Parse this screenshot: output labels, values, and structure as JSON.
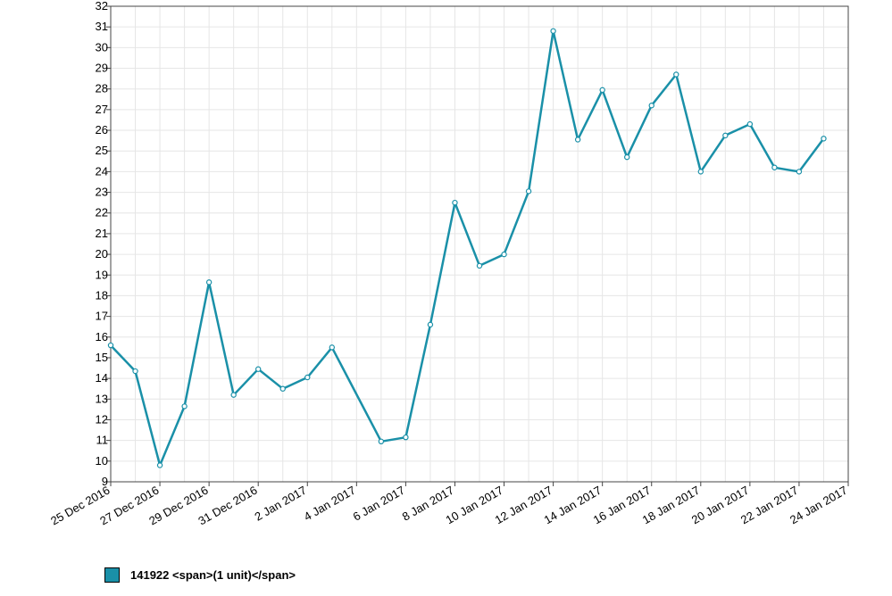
{
  "colors": {
    "series": "#1a90a8",
    "grid": "#e6e6e6",
    "axis": "#444444"
  },
  "chart_data": {
    "type": "line",
    "title": "",
    "xlabel": "",
    "ylabel": "",
    "ylim": [
      9,
      32
    ],
    "grid": true,
    "legend_position": "bottom-left",
    "y_ticks": [
      "9",
      "10",
      "11",
      "12",
      "13",
      "14",
      "15",
      "16",
      "17",
      "18",
      "19",
      "20",
      "21",
      "22",
      "23",
      "24",
      "25",
      "26",
      "27",
      "28",
      "29",
      "30",
      "31",
      "32"
    ],
    "x_ticks": [
      "25 Dec 2016",
      "27 Dec 2016",
      "29 Dec 2016",
      "31 Dec 2016",
      "2 Jan 2017",
      "4 Jan 2017",
      "6 Jan 2017",
      "8 Jan 2017",
      "10 Jan 2017",
      "12 Jan 2017",
      "14 Jan 2017",
      "16 Jan 2017",
      "18 Jan 2017",
      "20 Jan 2017",
      "22 Jan 2017",
      "24 Jan 2017"
    ],
    "series": [
      {
        "name": "141922 <span>(1 unit)</span>",
        "color": "#1a90a8",
        "points": [
          {
            "x": "25 Dec 2016",
            "y": 15.6
          },
          {
            "x": "26 Dec 2016",
            "y": 14.35
          },
          {
            "x": "27 Dec 2016",
            "y": 9.8
          },
          {
            "x": "28 Dec 2016",
            "y": 12.65
          },
          {
            "x": "29 Dec 2016",
            "y": 18.65
          },
          {
            "x": "30 Dec 2016",
            "y": 13.2
          },
          {
            "x": "31 Dec 2016",
            "y": 14.45
          },
          {
            "x": "1 Jan 2017",
            "y": 13.5
          },
          {
            "x": "2 Jan 2017",
            "y": 14.05
          },
          {
            "x": "3 Jan 2017",
            "y": 15.5
          },
          {
            "x": "5 Jan 2017",
            "y": 10.95
          },
          {
            "x": "6 Jan 2017",
            "y": 11.15
          },
          {
            "x": "7 Jan 2017",
            "y": 16.6
          },
          {
            "x": "8 Jan 2017",
            "y": 22.5
          },
          {
            "x": "9 Jan 2017",
            "y": 19.45
          },
          {
            "x": "10 Jan 2017",
            "y": 20.0
          },
          {
            "x": "11 Jan 2017",
            "y": 23.05
          },
          {
            "x": "12 Jan 2017",
            "y": 30.8
          },
          {
            "x": "13 Jan 2017",
            "y": 25.55
          },
          {
            "x": "14 Jan 2017",
            "y": 27.95
          },
          {
            "x": "15 Jan 2017",
            "y": 24.7
          },
          {
            "x": "16 Jan 2017",
            "y": 27.2
          },
          {
            "x": "17 Jan 2017",
            "y": 28.7
          },
          {
            "x": "18 Jan 2017",
            "y": 24.0
          },
          {
            "x": "19 Jan 2017",
            "y": 25.75
          },
          {
            "x": "20 Jan 2017",
            "y": 26.3
          },
          {
            "x": "21 Jan 2017",
            "y": 24.2
          },
          {
            "x": "22 Jan 2017",
            "y": 24.0
          },
          {
            "x": "23 Jan 2017",
            "y": 25.6
          }
        ]
      }
    ]
  },
  "legend": {
    "label": "141922 <span>(1 unit)</span>",
    "color": "#1a90a8"
  }
}
